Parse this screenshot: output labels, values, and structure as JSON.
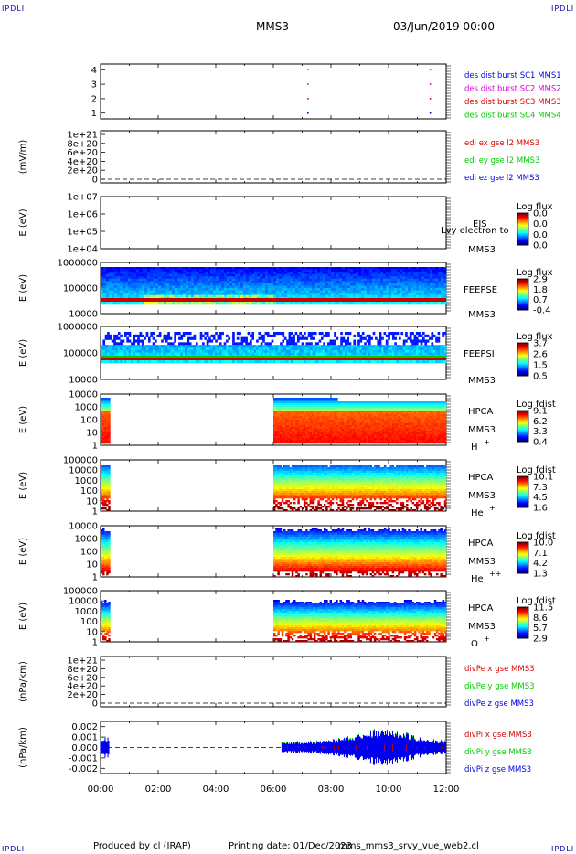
{
  "page": {
    "corner_label": "IPDLI",
    "title": "MMS3",
    "date": "03/Jun/2019 00:00",
    "footer": {
      "produced_by": "Produced by cl (IRAP)",
      "printing_date": "Printing date: 01/Dec/2023",
      "script": "mms_mms3_srvy_vue_web2.cl"
    }
  },
  "colors": {
    "blue": "#0000ee",
    "magenta": "#dd00dd",
    "red": "#dd0000",
    "green": "#00cc00",
    "axis": "#000000"
  },
  "chart_data": [
    {
      "type": "scatter",
      "panel": "burst",
      "yticks": [
        "1",
        "2",
        "3",
        "4"
      ],
      "ylim": [
        0.6,
        4.4
      ],
      "legend": [
        {
          "label": "des dist burst SC1 MMS1",
          "color": "#0000ee"
        },
        {
          "label": "des dist burst SC2 MMS2",
          "color": "#dd00dd"
        },
        {
          "label": "des dist burst SC3 MMS3",
          "color": "#dd0000"
        },
        {
          "label": "des dist burst SC4 MMS4",
          "color": "#00cc00"
        }
      ],
      "points": [
        {
          "x": 7.2,
          "y": 4,
          "color": "#00cc00"
        },
        {
          "x": 7.2,
          "y": 3,
          "color": "#dd00dd"
        },
        {
          "x": 7.2,
          "y": 2,
          "color": "#dd0000"
        },
        {
          "x": 7.2,
          "y": 1,
          "color": "#0000ee"
        },
        {
          "x": 11.45,
          "y": 4,
          "color": "#00cc00"
        },
        {
          "x": 11.45,
          "y": 3,
          "color": "#dd00dd"
        },
        {
          "x": 11.45,
          "y": 2,
          "color": "#dd0000"
        },
        {
          "x": 11.45,
          "y": 1,
          "color": "#0000ee"
        }
      ]
    },
    {
      "type": "line",
      "panel": "edi",
      "ylabel": "(mV/m)",
      "yticks": [
        "0",
        "2e+20",
        "4e+20",
        "6e+20",
        "8e+20",
        "1e+21"
      ],
      "legend": [
        {
          "label": "edi ex gse l2 MMS3",
          "color": "#dd0000"
        },
        {
          "label": "edi ey gse l2 MMS3",
          "color": "#00cc00"
        },
        {
          "label": "edi ez gse l2 MMS3",
          "color": "#0000ee"
        }
      ],
      "series": []
    },
    {
      "type": "heatmap",
      "panel": "eis",
      "ylabel": "E (eV)",
      "yticks": [
        "1e+04",
        "1e+05",
        "1e+06",
        "1e+07"
      ],
      "instrument": "EIS",
      "overlay_text": "Lvy electron to",
      "spacecraft": "MMS3",
      "colorbar": {
        "title": "Log flux",
        "ticks": [
          "0.0",
          "0.0",
          "0.0",
          "0.0"
        ]
      }
    },
    {
      "type": "heatmap",
      "panel": "feepse",
      "ylabel": "E (eV)",
      "yticks": [
        "10000",
        "100000",
        "1000000"
      ],
      "instrument": "FEEPSE",
      "spacecraft": "MMS3",
      "colorbar": {
        "title": "Log flux",
        "ticks": [
          "2.9",
          "1.8",
          "0.7",
          "-0.4"
        ]
      }
    },
    {
      "type": "heatmap",
      "panel": "feepsi",
      "ylabel": "E (eV)",
      "yticks": [
        "10000",
        "100000",
        "1000000"
      ],
      "instrument": "FEEPSI",
      "spacecraft": "MMS3",
      "colorbar": {
        "title": "Log flux",
        "ticks": [
          "3.7",
          "2.6",
          "1.5",
          "0.5"
        ]
      }
    },
    {
      "type": "heatmap",
      "panel": "hpca_h",
      "ylabel": "E (eV)",
      "yticks": [
        "1",
        "10",
        "100",
        "1000",
        "10000"
      ],
      "instrument": "HPCA",
      "spacecraft": "MMS3",
      "species": "H",
      "species_charge": "+",
      "colorbar": {
        "title": "Log fdist",
        "ticks": [
          "9.1",
          "6.2",
          "3.3",
          "0.4"
        ]
      },
      "coverage": [
        [
          0.0,
          0.33
        ],
        [
          6.0,
          12.0
        ]
      ]
    },
    {
      "type": "heatmap",
      "panel": "hpca_he",
      "ylabel": "E (eV)",
      "yticks": [
        "1",
        "10",
        "100",
        "1000",
        "10000",
        "100000"
      ],
      "instrument": "HPCA",
      "spacecraft": "MMS3",
      "species": "He",
      "species_charge": "+",
      "colorbar": {
        "title": "Log fdist",
        "ticks": [
          "10.1",
          "7.3",
          "4.5",
          "1.6"
        ]
      },
      "coverage": [
        [
          0.0,
          0.33
        ],
        [
          6.0,
          12.0
        ]
      ]
    },
    {
      "type": "heatmap",
      "panel": "hpca_hepp",
      "ylabel": "E (eV)",
      "yticks": [
        "1",
        "10",
        "100",
        "1000",
        "10000"
      ],
      "instrument": "HPCA",
      "spacecraft": "MMS3",
      "species": "He",
      "species_charge": "++",
      "colorbar": {
        "title": "Log fdist",
        "ticks": [
          "10.0",
          "7.1",
          "4.2",
          "1.3"
        ]
      },
      "coverage": [
        [
          0.0,
          0.33
        ],
        [
          6.0,
          12.0
        ]
      ]
    },
    {
      "type": "heatmap",
      "panel": "hpca_o",
      "ylabel": "E (eV)",
      "yticks": [
        "1",
        "10",
        "100",
        "1000",
        "10000",
        "100000"
      ],
      "instrument": "HPCA",
      "spacecraft": "MMS3",
      "species": "O",
      "species_charge": "+",
      "colorbar": {
        "title": "Log fdist",
        "ticks": [
          "11.5",
          "8.6",
          "5.7",
          "2.9"
        ]
      },
      "coverage": [
        [
          0.0,
          0.33
        ],
        [
          6.0,
          12.0
        ]
      ]
    },
    {
      "type": "line",
      "panel": "divpe",
      "ylabel": "(nPa/km)",
      "yticks": [
        "0",
        "2e+20",
        "4e+20",
        "6e+20",
        "8e+20",
        "1e+21"
      ],
      "legend": [
        {
          "label": "divPe x gse MMS3",
          "color": "#dd0000"
        },
        {
          "label": "divPe y gse MMS3",
          "color": "#00cc00"
        },
        {
          "label": "divPe z gse MMS3",
          "color": "#0000ee"
        }
      ],
      "series": []
    },
    {
      "type": "area",
      "panel": "divpi",
      "ylabel": "(nPa/km)",
      "yticks": [
        "-0.002",
        "-0.001",
        "0.000",
        "0.001",
        "0.002"
      ],
      "ylim": [
        -0.0025,
        0.0025
      ],
      "legend": [
        {
          "label": "divPi x gse MMS3",
          "color": "#dd0000"
        },
        {
          "label": "divPi y gse MMS3",
          "color": "#00cc00"
        },
        {
          "label": "divPi z gse MMS3",
          "color": "#0000ee"
        }
      ],
      "coverage": [
        [
          0.0,
          0.33
        ],
        [
          6.3,
          12.0
        ]
      ]
    }
  ],
  "x_axis": {
    "ticks": [
      "00:00",
      "02:00",
      "04:00",
      "06:00",
      "08:00",
      "10:00",
      "12:00"
    ],
    "xlim": [
      0,
      12
    ]
  }
}
